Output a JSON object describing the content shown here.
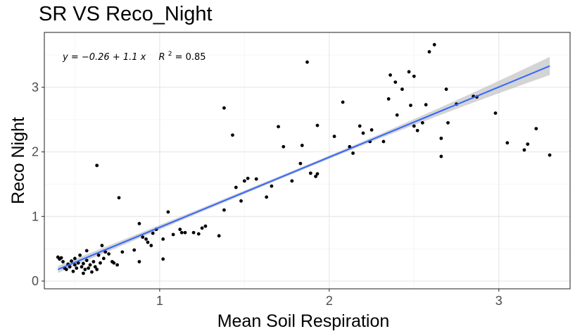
{
  "chart_data": {
    "type": "scatter",
    "title": "SR VS Reco_Night",
    "xlabel": "Mean Soil Respiration",
    "ylabel": "Reco Night",
    "xlim": [
      0.32,
      3.42
    ],
    "ylim": [
      -0.12,
      3.85
    ],
    "x_ticks": [
      1,
      2,
      3
    ],
    "y_ticks": [
      0,
      1,
      2,
      3
    ],
    "grid": true,
    "annotation": {
      "equation": "y = −0.26 + 1.1 x",
      "r2_label": "R",
      "r2_exp": "2",
      "r2_value": " = 0.85"
    },
    "fit": {
      "x": [
        0.4,
        3.3
      ],
      "y": [
        0.18,
        3.33
      ],
      "band_half_width": [
        0.055,
        0.14
      ],
      "line_color": "#3366FF",
      "band_color": "#bdbdbd"
    },
    "point_color": "#000000",
    "points": [
      [
        0.4,
        0.37
      ],
      [
        0.41,
        0.34
      ],
      [
        0.42,
        0.36
      ],
      [
        0.43,
        0.3
      ],
      [
        0.44,
        0.2
      ],
      [
        0.45,
        0.18
      ],
      [
        0.46,
        0.26
      ],
      [
        0.47,
        0.22
      ],
      [
        0.48,
        0.31
      ],
      [
        0.49,
        0.15
      ],
      [
        0.5,
        0.25
      ],
      [
        0.5,
        0.35
      ],
      [
        0.51,
        0.2
      ],
      [
        0.52,
        0.28
      ],
      [
        0.53,
        0.4
      ],
      [
        0.54,
        0.22
      ],
      [
        0.55,
        0.12
      ],
      [
        0.55,
        0.27
      ],
      [
        0.56,
        0.18
      ],
      [
        0.57,
        0.32
      ],
      [
        0.57,
        0.47
      ],
      [
        0.58,
        0.2
      ],
      [
        0.59,
        0.25
      ],
      [
        0.6,
        0.14
      ],
      [
        0.61,
        0.3
      ],
      [
        0.62,
        0.22
      ],
      [
        0.63,
        0.18
      ],
      [
        0.64,
        0.4
      ],
      [
        0.65,
        0.28
      ],
      [
        0.66,
        0.55
      ],
      [
        0.67,
        0.35
      ],
      [
        0.68,
        0.45
      ],
      [
        0.7,
        0.42
      ],
      [
        0.72,
        0.3
      ],
      [
        0.73,
        0.28
      ],
      [
        0.75,
        0.25
      ],
      [
        0.78,
        0.45
      ],
      [
        0.63,
        1.79
      ],
      [
        0.76,
        1.29
      ],
      [
        0.85,
        0.48
      ],
      [
        0.88,
        0.3
      ],
      [
        0.88,
        0.89
      ],
      [
        0.9,
        0.68
      ],
      [
        0.92,
        0.65
      ],
      [
        0.93,
        0.6
      ],
      [
        0.95,
        0.55
      ],
      [
        0.96,
        0.74
      ],
      [
        0.98,
        0.8
      ],
      [
        1.02,
        0.34
      ],
      [
        1.02,
        0.65
      ],
      [
        1.05,
        1.07
      ],
      [
        1.08,
        0.72
      ],
      [
        1.12,
        0.8
      ],
      [
        1.13,
        0.75
      ],
      [
        1.15,
        0.75
      ],
      [
        1.2,
        0.75
      ],
      [
        1.23,
        0.73
      ],
      [
        1.25,
        0.82
      ],
      [
        1.27,
        0.85
      ],
      [
        1.35,
        0.7
      ],
      [
        1.38,
        1.1
      ],
      [
        1.38,
        2.68
      ],
      [
        1.43,
        2.26
      ],
      [
        1.45,
        1.45
      ],
      [
        1.48,
        1.24
      ],
      [
        1.5,
        1.55
      ],
      [
        1.52,
        1.59
      ],
      [
        1.57,
        1.58
      ],
      [
        1.63,
        1.3
      ],
      [
        1.66,
        1.47
      ],
      [
        1.7,
        2.39
      ],
      [
        1.73,
        2.08
      ],
      [
        1.78,
        1.55
      ],
      [
        1.83,
        1.82
      ],
      [
        1.84,
        2.1
      ],
      [
        1.87,
        3.39
      ],
      [
        1.89,
        1.67
      ],
      [
        1.92,
        1.62
      ],
      [
        1.93,
        1.66
      ],
      [
        1.93,
        2.41
      ],
      [
        2.03,
        2.24
      ],
      [
        2.08,
        2.77
      ],
      [
        2.12,
        2.08
      ],
      [
        2.14,
        1.98
      ],
      [
        2.18,
        2.4
      ],
      [
        2.2,
        2.29
      ],
      [
        2.24,
        2.16
      ],
      [
        2.25,
        2.34
      ],
      [
        2.32,
        2.16
      ],
      [
        2.35,
        2.82
      ],
      [
        2.36,
        3.19
      ],
      [
        2.39,
        3.08
      ],
      [
        2.4,
        2.57
      ],
      [
        2.43,
        2.97
      ],
      [
        2.47,
        3.24
      ],
      [
        2.48,
        2.72
      ],
      [
        2.5,
        3.17
      ],
      [
        2.5,
        2.4
      ],
      [
        2.52,
        2.33
      ],
      [
        2.55,
        2.45
      ],
      [
        2.57,
        2.73
      ],
      [
        2.59,
        3.55
      ],
      [
        2.62,
        3.66
      ],
      [
        2.66,
        2.21
      ],
      [
        2.66,
        1.93
      ],
      [
        2.69,
        2.97
      ],
      [
        2.7,
        2.45
      ],
      [
        2.75,
        2.74
      ],
      [
        2.85,
        2.86
      ],
      [
        2.87,
        2.85
      ],
      [
        2.98,
        2.6
      ],
      [
        3.05,
        2.14
      ],
      [
        3.15,
        2.03
      ],
      [
        3.17,
        2.12
      ],
      [
        3.22,
        2.36
      ],
      [
        3.3,
        1.95
      ]
    ]
  }
}
